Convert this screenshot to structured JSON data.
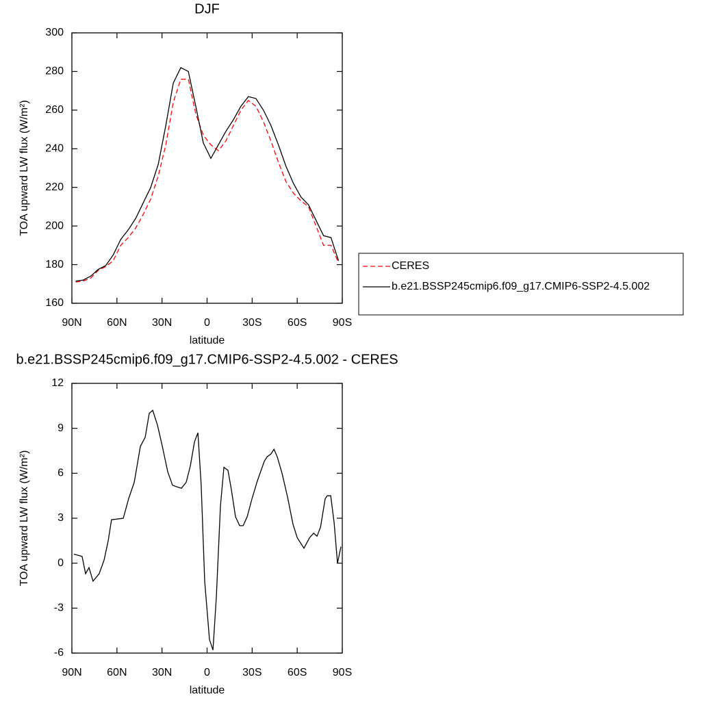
{
  "chart_data": [
    {
      "type": "line",
      "title": "DJF",
      "xlabel": "latitude",
      "ylabel": "TOA upward LW flux (W/m²)",
      "x": [
        87.5,
        82.5,
        77.5,
        72.5,
        67.5,
        62.5,
        57.5,
        52.5,
        47.5,
        42.5,
        37.5,
        32.5,
        27.5,
        22.5,
        17.5,
        12.5,
        7.5,
        2.5,
        -2.5,
        -7.5,
        -12.5,
        -17.5,
        -22.5,
        -27.5,
        -32.5,
        -37.5,
        -42.5,
        -47.5,
        -52.5,
        -57.5,
        -62.5,
        -67.5,
        -72.5,
        -77.5,
        -82.5,
        -87.5
      ],
      "series": [
        {
          "name": "CERES",
          "color": "#ff0000",
          "line_style": "dashed",
          "values": [
            171,
            171.5,
            173,
            177,
            179,
            182,
            190,
            194,
            199,
            206,
            214,
            226,
            242,
            264,
            276,
            276,
            258,
            247,
            242,
            239,
            244,
            252,
            260,
            265,
            262,
            254,
            244,
            233,
            223,
            217,
            213,
            210,
            200,
            190,
            190,
            181
          ]
        },
        {
          "name": "b.e21.BSSP245cmip6.f09_g17.CMIP6-SSP2-4.5.002",
          "color": "#000000",
          "line_style": "solid",
          "values": [
            171.5,
            172,
            174,
            177.5,
            179.5,
            185,
            193,
            198,
            204,
            212,
            220,
            232,
            252,
            274,
            282,
            280,
            262,
            243,
            235,
            242,
            249,
            255,
            262,
            267,
            266,
            260,
            252,
            242,
            231,
            222,
            215,
            211,
            203,
            195,
            194,
            182
          ]
        }
      ],
      "xlim": [
        90,
        -90
      ],
      "xticks": [
        {
          "value": 90,
          "label": "90N"
        },
        {
          "value": 60,
          "label": "60N"
        },
        {
          "value": 30,
          "label": "30N"
        },
        0,
        {
          "value": -30,
          "label": "30S"
        },
        {
          "value": -60,
          "label": "60S"
        },
        {
          "value": -90,
          "label": "90S"
        }
      ],
      "ylim": [
        160,
        300
      ],
      "yticks": [
        160,
        180,
        200,
        220,
        240,
        260,
        280,
        300
      ],
      "legend": "right"
    },
    {
      "type": "line",
      "title": "b.e21.BSSP245cmip6.f09_g17.CMIP6-SSP2-4.5.002 - CERES",
      "xlabel": "latitude",
      "ylabel": "TOA upward LW flux (W/m²)",
      "x": [
        88.6,
        83.2,
        80.9,
        78.6,
        75.9,
        71.8,
        68.6,
        65.8,
        63.6,
        55.8,
        52.2,
        48.5,
        44.4,
        41.2,
        38.5,
        36.2,
        33.0,
        29.8,
        26.2,
        23.0,
        20.3,
        17.1,
        13.9,
        11.1,
        8.4,
        6.1,
        3.9,
        1.6,
        -1.6,
        -3.9,
        -6.2,
        -8.9,
        -11.2,
        -13.9,
        -16.2,
        -18.9,
        -21.7,
        -24.0,
        -26.7,
        -29.9,
        -33.5,
        -38.1,
        -39.9,
        -42.6,
        -44.5,
        -46.7,
        -49.9,
        -53.6,
        -57.2,
        -60.0,
        -64.5,
        -68.2,
        -70.9,
        -73.2,
        -75.5,
        -78.6,
        -80.0,
        -82.3,
        -84.6,
        -86.8,
        -89.1
      ],
      "series": [
        {
          "color": "#000000",
          "line_style": "solid",
          "values": [
            0.6,
            0.45,
            -0.7,
            -0.3,
            -1.2,
            -0.7,
            0.2,
            1.5,
            2.9,
            3.0,
            4.3,
            5.4,
            7.8,
            8.4,
            10.0,
            10.2,
            9.2,
            7.8,
            6.1,
            5.2,
            5.1,
            5.0,
            5.4,
            6.5,
            8.1,
            8.7,
            5.2,
            -1.2,
            -5.1,
            -5.8,
            -2.2,
            3.8,
            6.4,
            6.2,
            4.9,
            3.1,
            2.5,
            2.5,
            3.1,
            4.3,
            5.5,
            6.8,
            7.1,
            7.3,
            7.6,
            7.1,
            6.0,
            4.4,
            2.6,
            1.7,
            1.0,
            1.7,
            2.0,
            1.8,
            2.4,
            4.3,
            4.5,
            4.5,
            2.7,
            0.0,
            1.1
          ]
        }
      ],
      "xlim": [
        90,
        -90
      ],
      "xticks": [
        {
          "value": 90,
          "label": "90N"
        },
        {
          "value": 60,
          "label": "60N"
        },
        {
          "value": 30,
          "label": "30N"
        },
        0,
        {
          "value": -30,
          "label": "30S"
        },
        {
          "value": -60,
          "label": "60S"
        },
        {
          "value": -90,
          "label": "90S"
        }
      ],
      "ylim": [
        -6,
        12
      ],
      "yticks": [
        -6,
        -3,
        0,
        3,
        6,
        9,
        12
      ]
    }
  ]
}
